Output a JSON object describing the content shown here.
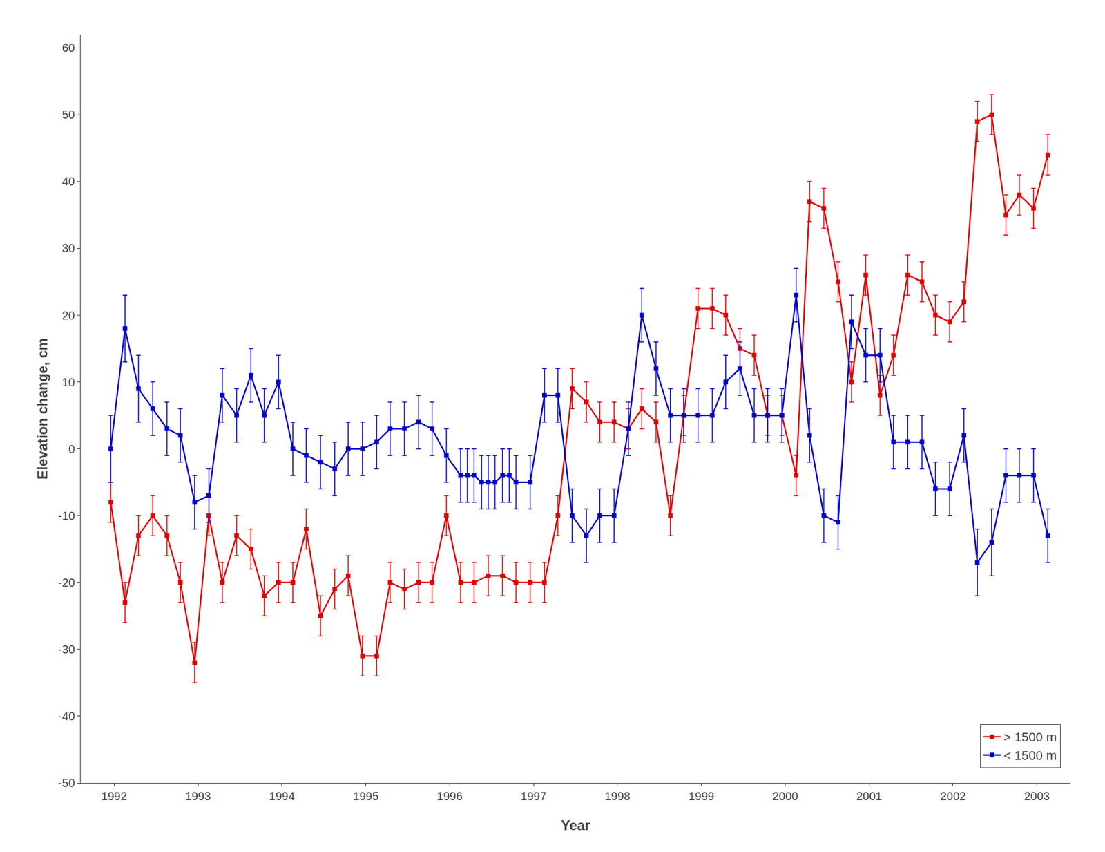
{
  "chart_data": {
    "type": "line",
    "xlabel": "Year",
    "ylabel": "Elevation change, cm",
    "xlim": [
      1991.6,
      2003.4
    ],
    "ylim": [
      -50,
      62
    ],
    "xticks": [
      1992,
      1993,
      1994,
      1995,
      1996,
      1997,
      1998,
      1999,
      2000,
      2001,
      2002,
      2003
    ],
    "yticks": [
      -50,
      -40,
      -30,
      -20,
      -10,
      0,
      10,
      20,
      30,
      40,
      50,
      60
    ],
    "grid": false,
    "legend": "lower right",
    "series": [
      {
        "name": "> 1500 m",
        "color": "#e00000",
        "marker": "square",
        "line_style": "solid",
        "x": [
          1991.96,
          1992.13,
          1992.29,
          1992.46,
          1992.63,
          1992.79,
          1992.96,
          1993.13,
          1993.29,
          1993.46,
          1993.63,
          1993.79,
          1993.96,
          1994.13,
          1994.29,
          1994.46,
          1994.63,
          1994.79,
          1994.96,
          1995.13,
          1995.29,
          1995.46,
          1995.63,
          1995.79,
          1995.96,
          1996.13,
          1996.29,
          1996.46,
          1996.63,
          1996.79,
          1996.96,
          1997.13,
          1997.29,
          1997.46,
          1997.63,
          1997.79,
          1997.96,
          1998.13,
          1998.29,
          1998.46,
          1998.63,
          1998.79,
          1998.96,
          1999.13,
          1999.29,
          1999.46,
          1999.63,
          1999.79,
          1999.96,
          2000.13,
          2000.29,
          2000.46,
          2000.63,
          2000.79,
          2000.96,
          2001.13,
          2001.29,
          2001.46,
          2001.63,
          2001.79,
          2001.96,
          2002.13,
          2002.29,
          2002.46,
          2002.63,
          2002.79,
          2002.96,
          2003.13
        ],
        "values": [
          -8,
          -23,
          -13,
          -10,
          -13,
          -20,
          -32,
          -10,
          -20,
          -13,
          -15,
          -22,
          -20,
          -20,
          -12,
          -25,
          -21,
          -19,
          -31,
          -31,
          -20,
          -21,
          -20,
          -20,
          -10,
          -20,
          -20,
          -19,
          -19,
          -20,
          -20,
          -20,
          -10,
          9,
          7,
          4,
          4,
          3,
          6,
          4,
          -10,
          5,
          21,
          21,
          20,
          15,
          14,
          5,
          5,
          -4,
          37,
          36,
          25,
          10,
          26,
          8,
          14,
          26,
          25,
          20,
          19,
          22,
          49,
          50,
          35,
          38,
          36,
          44
        ],
        "yerr": [
          3,
          3,
          3,
          3,
          3,
          3,
          3,
          3,
          3,
          3,
          3,
          3,
          3,
          3,
          3,
          3,
          3,
          3,
          3,
          3,
          3,
          3,
          3,
          3,
          3,
          3,
          3,
          3,
          3,
          3,
          3,
          3,
          3,
          3,
          3,
          3,
          3,
          3,
          3,
          3,
          3,
          3,
          3,
          3,
          3,
          3,
          3,
          3,
          3,
          3,
          3,
          3,
          3,
          3,
          3,
          3,
          3,
          3,
          3,
          3,
          3,
          3,
          3,
          3,
          3,
          3,
          3,
          3
        ]
      },
      {
        "name": "< 1500 m",
        "color": "#0000cc",
        "marker": "square",
        "line_style": "solid",
        "x": [
          1991.96,
          1992.13,
          1992.29,
          1992.46,
          1992.63,
          1992.79,
          1992.96,
          1993.13,
          1993.29,
          1993.46,
          1993.63,
          1993.79,
          1993.96,
          1994.13,
          1994.29,
          1994.46,
          1994.63,
          1994.79,
          1994.96,
          1995.13,
          1995.29,
          1995.46,
          1995.63,
          1995.79,
          1995.96,
          1996.13,
          1996.21,
          1996.29,
          1996.38,
          1996.46,
          1996.54,
          1996.63,
          1996.71,
          1996.79,
          1996.96,
          1997.13,
          1997.29,
          1997.46,
          1997.63,
          1997.79,
          1997.96,
          1998.13,
          1998.29,
          1998.46,
          1998.63,
          1998.79,
          1998.96,
          1999.13,
          1999.29,
          1999.46,
          1999.63,
          1999.79,
          1999.96,
          2000.13,
          2000.29,
          2000.46,
          2000.63,
          2000.79,
          2000.96,
          2001.13,
          2001.29,
          2001.46,
          2001.63,
          2001.79,
          2001.96,
          2002.13,
          2002.29,
          2002.46,
          2002.63,
          2002.79,
          2002.96,
          2003.13
        ],
        "values": [
          0,
          18,
          9,
          6,
          3,
          2,
          -8,
          -7,
          8,
          5,
          11,
          5,
          10,
          0,
          -1,
          -2,
          -3,
          0,
          0,
          1,
          3,
          3,
          4,
          3,
          -1,
          -4,
          -4,
          -4,
          -5,
          -5,
          -5,
          -4,
          -4,
          -5,
          -5,
          8,
          8,
          -10,
          -13,
          -10,
          -10,
          3,
          20,
          12,
          5,
          5,
          5,
          5,
          10,
          12,
          5,
          5,
          5,
          23,
          2,
          -10,
          -11,
          19,
          14,
          14,
          1,
          1,
          1,
          -6,
          -6,
          2,
          -17,
          -14,
          -4,
          -4,
          -4,
          -13
        ],
        "yerr": [
          5,
          5,
          5,
          4,
          4,
          4,
          4,
          4,
          4,
          4,
          4,
          4,
          4,
          4,
          4,
          4,
          4,
          4,
          4,
          4,
          4,
          4,
          4,
          4,
          4,
          4,
          4,
          4,
          4,
          4,
          4,
          4,
          4,
          4,
          4,
          4,
          4,
          4,
          4,
          4,
          4,
          4,
          4,
          4,
          4,
          4,
          4,
          4,
          4,
          4,
          4,
          4,
          4,
          4,
          4,
          4,
          4,
          4,
          4,
          4,
          4,
          4,
          4,
          4,
          4,
          4,
          5,
          5,
          4,
          4,
          4,
          4
        ]
      }
    ]
  }
}
